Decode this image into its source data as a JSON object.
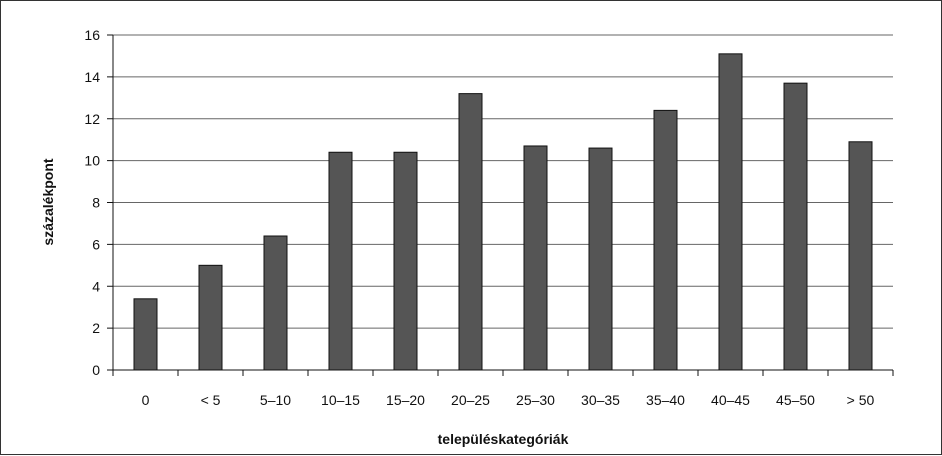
{
  "chart_data": {
    "type": "bar",
    "title": "",
    "xlabel": "településkategóriák",
    "ylabel": "százalékpont",
    "categories": [
      "0",
      "< 5",
      "5–10",
      "10–15",
      "15–20",
      "20–25",
      "25–30",
      "30–35",
      "35–40",
      "40–45",
      "45–50",
      "> 50"
    ],
    "values": [
      3.4,
      5.0,
      6.4,
      10.4,
      10.4,
      13.2,
      10.7,
      10.6,
      12.4,
      15.1,
      13.7,
      10.9
    ],
    "ylim": [
      0,
      16
    ],
    "yticks": [
      0,
      2,
      4,
      6,
      8,
      10,
      12,
      14,
      16
    ],
    "grid": true,
    "legend": "none",
    "colors": {
      "bar_fill": "#555555",
      "bar_stroke": "#111111",
      "grid": "#666666",
      "axis": "#111111"
    }
  }
}
